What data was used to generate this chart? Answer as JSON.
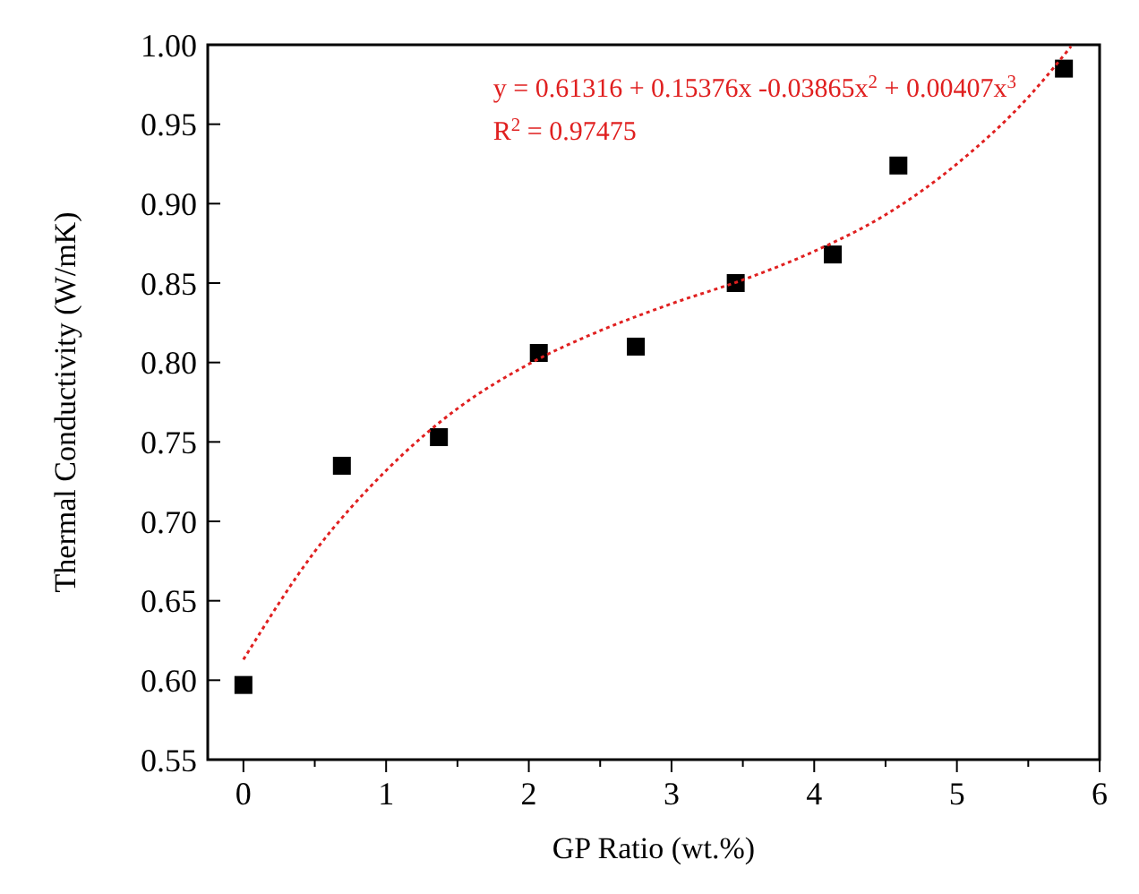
{
  "chart_data": {
    "type": "scatter",
    "xlabel": "GP Ratio (wt.%)",
    "ylabel": "Thermal Conductivity (W/mK)",
    "xlim": [
      -0.25,
      6
    ],
    "ylim": [
      0.55,
      1.0
    ],
    "xticks": [
      0,
      {
        "value": 0.5,
        "label": null
      },
      1,
      {
        "value": 1.5,
        "label": null
      },
      2,
      {
        "value": 2.5,
        "label": null
      },
      3,
      {
        "value": 3.5,
        "label": null
      },
      4,
      {
        "value": 4.5,
        "label": null
      },
      5,
      {
        "value": 5.5,
        "label": null
      },
      6
    ],
    "yticks": [
      {
        "value": 0.55,
        "label": "0.55"
      },
      {
        "value": 0.6,
        "label": "0.60"
      },
      0.65,
      {
        "value": 0.7,
        "label": "0.70"
      },
      0.75,
      {
        "value": 0.8,
        "label": "0.80"
      },
      0.85,
      {
        "value": 0.9,
        "label": "0.90"
      },
      0.95,
      {
        "value": 1.0,
        "label": "1.00"
      }
    ],
    "grid": false,
    "annotations": [
      "y = 0.61316 + 0.15376x -0.03865x$^{2}$ + 0.00407x$^{3}$",
      "R$^{2}$ = 0.97475"
    ],
    "series": [
      {
        "color": "#000000",
        "marker": "square",
        "x": [
          0,
          0.69,
          1.37,
          2.07,
          2.75,
          3.45,
          4.13,
          4.59,
          5.75
        ],
        "values": [
          0.597,
          0.735,
          0.753,
          0.806,
          0.81,
          0.85,
          0.868,
          0.924,
          0.985
        ]
      },
      {
        "type": "line",
        "color": "#e02020",
        "line_style": "dotted",
        "x": [
          0,
          0.5,
          1,
          1.5,
          2,
          2.5,
          3,
          3.5,
          4,
          4.5,
          5,
          5.5,
          5.8
        ],
        "values": [
          0.613,
          0.681,
          0.732,
          0.771,
          0.799,
          0.82,
          0.837,
          0.852,
          0.87,
          0.893,
          0.925,
          0.967,
          0.999
        ]
      }
    ]
  }
}
